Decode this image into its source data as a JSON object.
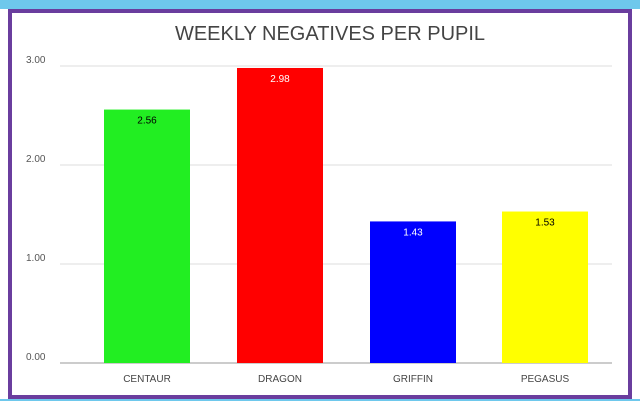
{
  "chart_data": {
    "type": "bar",
    "title": "WEEKLY NEGATIVES PER PUPIL",
    "categories": [
      "CENTAUR",
      "DRAGON",
      "GRIFFIN",
      "PEGASUS"
    ],
    "values": [
      2.56,
      2.98,
      1.43,
      1.53
    ],
    "data_labels": [
      "2.56",
      "2.98",
      "1.43",
      "1.53"
    ],
    "colors": [
      "#22ee22",
      "#ff0000",
      "#0000ff",
      "#ffff00"
    ],
    "label_colors": [
      "#000000",
      "#ffffff",
      "#ffffff",
      "#000000"
    ],
    "yticks": [
      "0.00",
      "1.00",
      "2.00",
      "3.00"
    ],
    "ylim": [
      0,
      3
    ],
    "xlabel": "",
    "ylabel": "",
    "grid": true,
    "legend": false
  }
}
